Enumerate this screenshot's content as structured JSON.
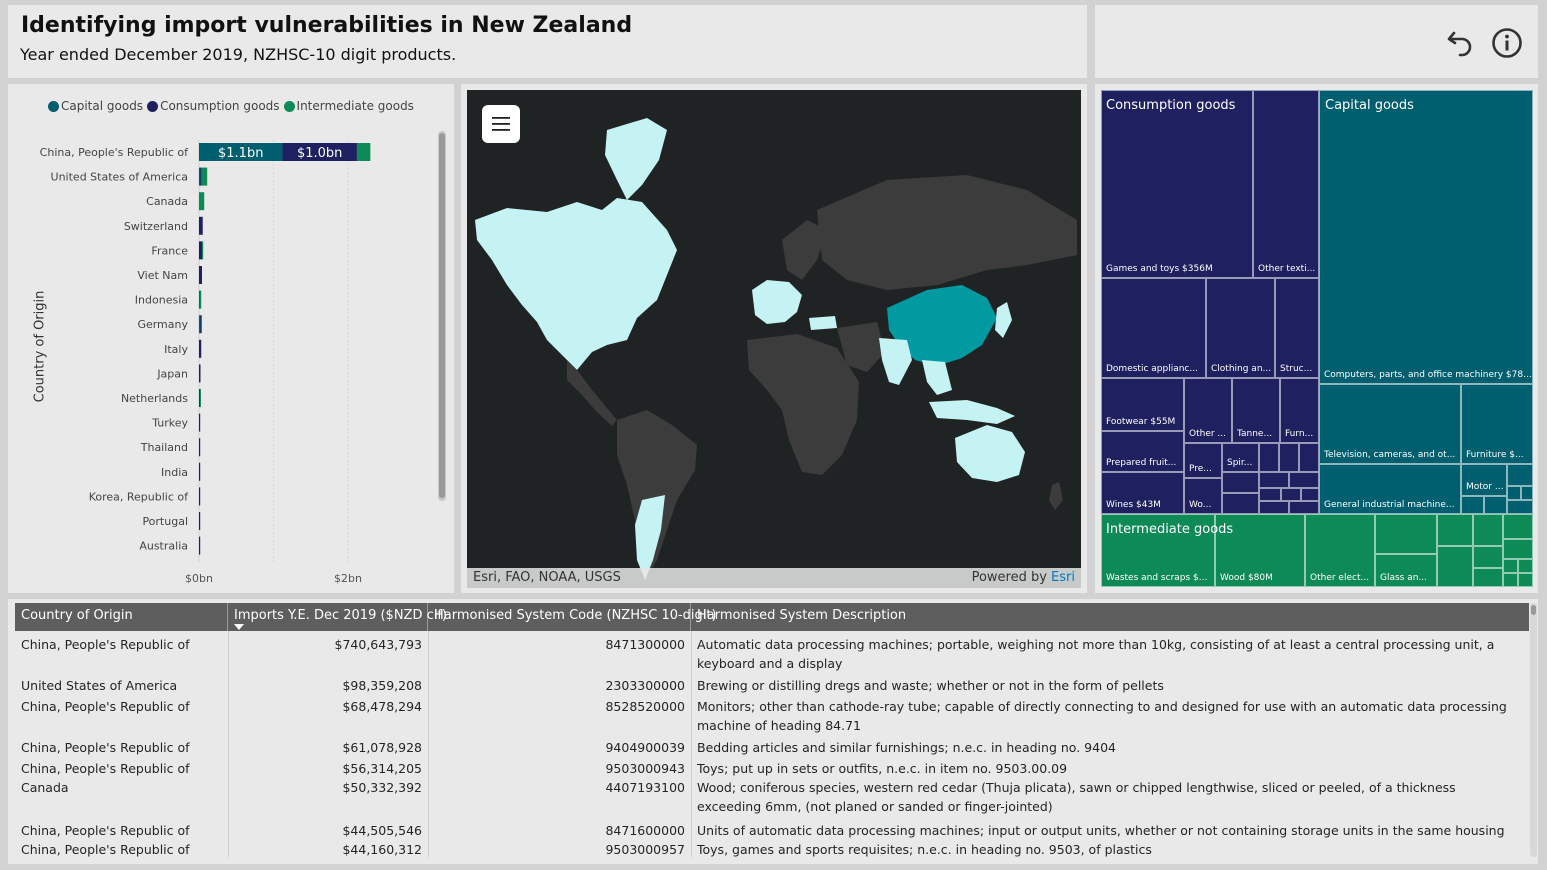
{
  "header": {
    "title": "Identifying import vulnerabilities in New Zealand",
    "subtitle": "Year ended December 2019, NZHSC-10 digit products."
  },
  "toolbar": {
    "back_icon": "undo-arrow-icon",
    "info_icon": "info-icon"
  },
  "colors": {
    "capital": "#005f6e",
    "consumption": "#1e2060",
    "intermediate": "#0e8a57",
    "highlight_country": "#009aa0",
    "land_other": "#3c3c3c",
    "land_source": "#c5f2f2"
  },
  "chart_data": {
    "type": "bar",
    "orientation": "horizontal",
    "stacked": true,
    "legend": {
      "placement": "top-left",
      "entries": [
        "Capital goods",
        "Consumption goods",
        "Intermediate goods"
      ]
    },
    "ylabel": "Country of Origin",
    "xlabel": "",
    "x_ticks": [
      "$0bn",
      "$2bn"
    ],
    "xlim": [
      0,
      3.0
    ],
    "categories": [
      "China, People's Republic of",
      "United States of America",
      "Canada",
      "Switzerland",
      "France",
      "Viet Nam",
      "Indonesia",
      "Germany",
      "Italy",
      "Japan",
      "Netherlands",
      "Turkey",
      "Thailand",
      "India",
      "Korea, Republic of",
      "Portugal",
      "Australia"
    ],
    "series": [
      {
        "name": "Capital goods",
        "values": [
          1.12,
          0.02,
          0.0,
          0.0,
          0.0,
          0.0,
          0.01,
          0.02,
          0.0,
          0.0,
          0.0,
          0.0,
          0.0,
          0.0,
          0.0,
          0.0,
          0.0
        ]
      },
      {
        "name": "Consumption goods",
        "values": [
          1.0,
          0.01,
          0.0,
          0.05,
          0.04,
          0.04,
          0.0,
          0.01,
          0.03,
          0.02,
          0.01,
          0.01,
          0.01,
          0.01,
          0.01,
          0.01,
          0.01
        ]
      },
      {
        "name": "Intermediate goods",
        "values": [
          0.18,
          0.08,
          0.07,
          0.0,
          0.01,
          0.0,
          0.02,
          0.0,
          0.0,
          0.0,
          0.01,
          0.0,
          0.0,
          0.0,
          0.0,
          0.0,
          0.0
        ]
      }
    ],
    "data_labels": [
      "$1.1bn",
      "$1.0bn"
    ],
    "grid": true
  },
  "map": {
    "menu_icon": "hamburger-icon",
    "attribution": "Esri, FAO, NOAA, USGS",
    "powered_prefix": "Powered by ",
    "powered_brand": "Esri"
  },
  "treemap": {
    "groups": {
      "consumption": "Consumption goods",
      "capital": "Capital goods",
      "intermediate": "Intermediate goods"
    },
    "labels": {
      "games": "Games and toys $356M",
      "other_textiles": "Other texti...",
      "domestic": "Domestic applianc...",
      "clothing": "Clothing an...",
      "struc": "Struc...",
      "footwear": "Footwear $55M",
      "other_c": "Other ...",
      "tanne": "Tanne...",
      "furn": "Furn...",
      "prepared": "Prepared fruit...",
      "pre": "Pre...",
      "spir": "Spir...",
      "wines": "Wines $43M",
      "wo": "Wo...",
      "computers": "Computers, parts, and office machinery $78...",
      "television": "Television, cameras, and ot...",
      "furniture": "Furniture $...",
      "motor": "Motor ...",
      "general": "General industrial machine...",
      "wastes": "Wastes and scraps $...",
      "wood": "Wood $80M",
      "other_elect": "Other elect...",
      "glass": "Glass an..."
    }
  },
  "table": {
    "columns": [
      "Country of Origin",
      "Imports Y.E. Dec 2019 ($NZD cif)",
      "Harmonised System Code (NZHSC 10-digit)",
      "Harmonised System Description"
    ],
    "rows": [
      {
        "country": "China, People's Republic of",
        "imports": "$740,643,793",
        "code": "8471300000",
        "desc": "Automatic data processing machines; portable, weighing not more than 10kg, consisting of at least a central processing unit, a keyboard and a display"
      },
      {
        "country": "United States of America",
        "imports": "$98,359,208",
        "code": "2303300000",
        "desc": "Brewing or distilling dregs and waste; whether or not in the form of pellets"
      },
      {
        "country": "China, People's Republic of",
        "imports": "$68,478,294",
        "code": "8528520000",
        "desc": "Monitors; other than cathode-ray tube; capable of directly connecting to and designed for use with an automatic data processing machine of heading 84.71"
      },
      {
        "country": "China, People's Republic of",
        "imports": "$61,078,928",
        "code": "9404900039",
        "desc": "Bedding articles and similar furnishings; n.e.c. in heading no. 9404"
      },
      {
        "country": "China, People's Republic of",
        "imports": "$56,314,205",
        "code": "9503000943",
        "desc": "Toys; put up in sets or outfits, n.e.c. in item no. 9503.00.09"
      },
      {
        "country": "Canada",
        "imports": "$50,332,392",
        "code": "4407193100",
        "desc": "Wood; coniferous species, western red cedar (Thuja plicata), sawn or chipped lengthwise, sliced or peeled, of a thickness exceeding 6mm, (not planed or sanded or finger-jointed)"
      },
      {
        "country": "China, People's Republic of",
        "imports": "$44,505,546",
        "code": "8471600000",
        "desc": "Units of automatic data processing machines; input or output units, whether or not containing storage units in the same housing"
      },
      {
        "country": "China, People's Republic of",
        "imports": "$44,160,312",
        "code": "9503000957",
        "desc": "Toys, games and sports requisites; n.e.c. in heading no. 9503, of plastics"
      }
    ]
  }
}
